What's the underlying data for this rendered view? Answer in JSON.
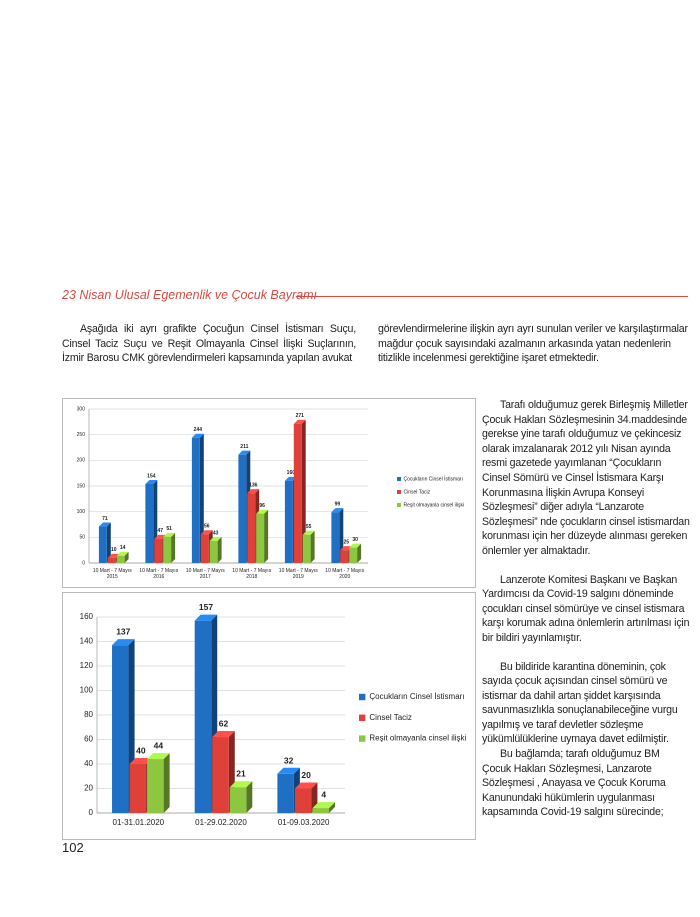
{
  "header": {
    "title": "23 Nisan Ulusal Egemenlik ve Çocuk Bayramı"
  },
  "text": {
    "intro_left": "Aşağıda iki ayrı grafikte Çocuğun Cinsel İstismarı Suçu, Cinsel Taciz Suçu ve Reşit Olmayanla Cinsel İlişki Suçlarının, İzmir Barosu CMK görevlendirmeleri kapsamında yapılan avukat",
    "intro_right": "görevlendirmelerine ilişkin ayrı ayrı sunulan veriler ve karşılaştırmalar mağdur çocuk sayısındaki azalmanın arkasında yatan nedenlerin titizlikle incelenmesi gerektiğine işaret etmektedir.",
    "paragraphs": [
      "Tarafı olduğumuz gerek Birleşmiş Milletler Çocuk Hakları Sözleşmesinin 34.maddesinde gerekse yine tarafı olduğumuz ve çekincesiz olarak imzalanarak 2012 yılı Nisan ayında resmi gazetede yayımlanan “Çocukların Cinsel Sömürü ve Cinsel İstismara Karşı Korunmasına İlişkin Avrupa Konseyi Sözleşmesi” diğer adıyla “Lanzarote Sözleşmesi” nde çocukların cinsel istismardan korunması için her düzeyde alınması gereken önlemler yer almaktadır.",
      "Lanzerote Komitesi Başkanı ve Başkan Yardımcısı da Covid-19 salgını döneminde çocukları cinsel sömürüye ve cinsel istismara karşı korumak adına önlemlerin artırılması için bir bildiri yayınlamıştır.",
      "Bu bildiride karantina döneminin, çok sayıda çocuk açısından cinsel sömürü ve istismar da dahil artan şiddet karşısında savunmasızlıkla sonuçlanabileceğine vurgu yapılmış ve taraf devletler sözleşme yükümlülüklerine uymaya davet edilmiştir.",
      "Bu bağlamda; tarafı olduğumuz BM Çocuk Hakları Sözleşmesi, Lanzarote Sözleşmesi , Anayasa ve Çocuk Koruma Kanunundaki hükümlerin uygulanması kapsamında Covid-19 salgını sürecinde;"
    ]
  },
  "chart_data": [
    {
      "type": "bar",
      "categories": [
        "10 Mart - 7 Mayıs 2015",
        "10 Mart - 7 Mayıs 2016",
        "10 Mart - 7 Mayıs 2017",
        "10 Mart - 7 Mayıs 2018",
        "10 Mart - 7 Mayıs 2019",
        "10 Mart - 7 Mayıs 2020"
      ],
      "series": [
        {
          "name": "Çocukların Cinsel İstismarı",
          "color": "#1f6fc5",
          "values": [
            71,
            154,
            244,
            211,
            160,
            99
          ]
        },
        {
          "name": "Cinsel Taciz",
          "color": "#e0403a",
          "values": [
            10,
            47,
            56,
            136,
            271,
            25
          ]
        },
        {
          "name": "Reşit olmayanla cinsel ilişki",
          "color": "#8dc63f",
          "values": [
            14,
            51,
            43,
            96,
            55,
            30
          ]
        }
      ],
      "ylim": [
        0,
        300
      ],
      "yticks": [
        0,
        50,
        100,
        150,
        200,
        250,
        300
      ],
      "grid": true,
      "legend": "right"
    },
    {
      "type": "bar",
      "categories": [
        "01-31.01.2020",
        "01-29.02.2020",
        "01-09.03.2020"
      ],
      "series": [
        {
          "name": "Çocukların Cinsel İstismarı",
          "color": "#1f6fc5",
          "values": [
            137,
            157,
            32
          ]
        },
        {
          "name": "Cinsel Taciz",
          "color": "#e0403a",
          "values": [
            40,
            62,
            20
          ]
        },
        {
          "name": "Reşit olmayanla cinsel ilişki",
          "color": "#8dc63f",
          "values": [
            44,
            21,
            4
          ]
        }
      ],
      "ylim": [
        0,
        160
      ],
      "yticks": [
        0,
        20,
        40,
        60,
        80,
        100,
        120,
        140,
        160
      ],
      "grid": true,
      "legend": "right"
    }
  ],
  "page_number": "102"
}
